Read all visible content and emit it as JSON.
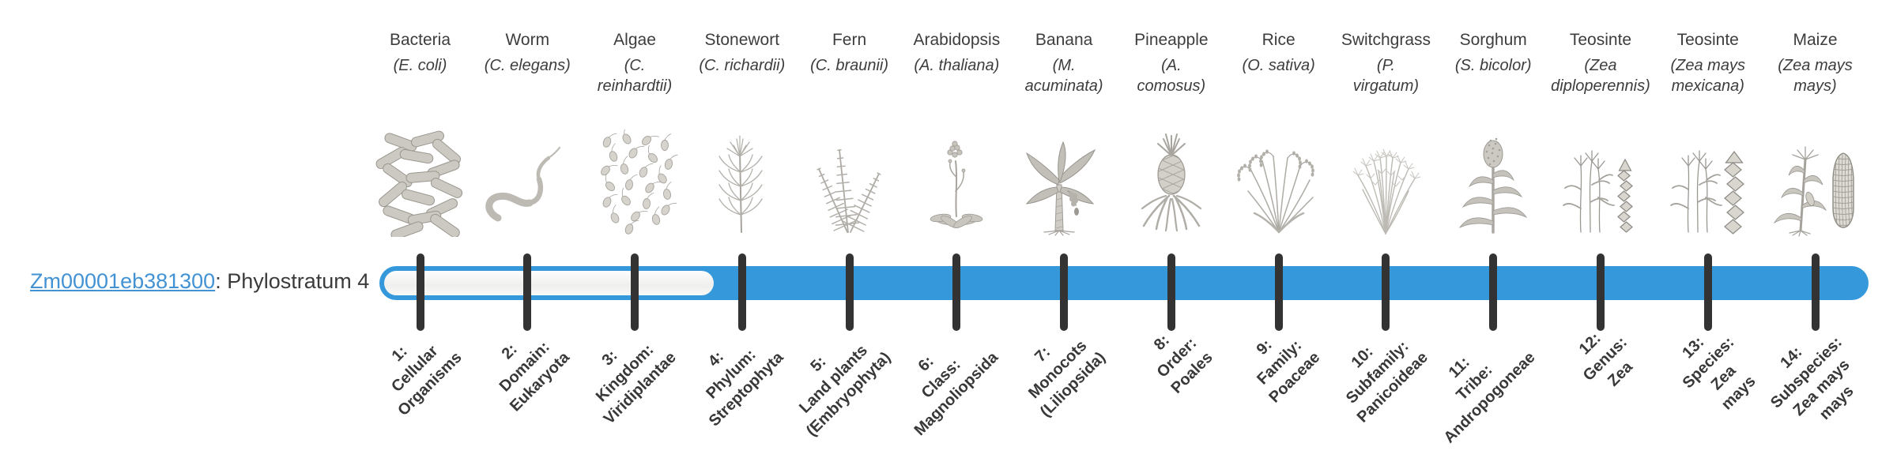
{
  "gene": {
    "id": "Zm00001eb381300",
    "label_suffix": ": Phylostratum 4",
    "phylostratum": 4,
    "link_color": "#4292d4",
    "text_color": "#3b3b3b"
  },
  "timeline": {
    "bar_color": "#3498db",
    "tick_color": "#333333",
    "strata_count": 14,
    "filled_from_stratum": 4
  },
  "organisms": [
    {
      "name": "Bacteria",
      "sci": "(E. coli)",
      "icon": "bacteria",
      "stratum_label": "1:\nCellular\nOrganisms"
    },
    {
      "name": "Worm",
      "sci": "(C. elegans)",
      "icon": "worm",
      "stratum_label": "2:\nDomain:\nEukaryota"
    },
    {
      "name": "Algae",
      "sci": "(C.\nreinhardtii)",
      "icon": "algae",
      "stratum_label": "3:\nKingdom:\nViridiplantae"
    },
    {
      "name": "Stonewort",
      "sci": "(C. richardii)",
      "icon": "stonewort",
      "stratum_label": "4:\nPhylum:\nStreptophyta"
    },
    {
      "name": "Fern",
      "sci": "(C. braunii)",
      "icon": "fern",
      "stratum_label": "5:\nLand plants\n(Embryophyta)"
    },
    {
      "name": "Arabidopsis",
      "sci": "(A. thaliana)",
      "icon": "arabidopsis",
      "stratum_label": "6:\nClass:\nMagnoliopsida"
    },
    {
      "name": "Banana",
      "sci": "(M.\nacuminata)",
      "icon": "banana",
      "stratum_label": "7:\nMonocots\n(Liliopsida)"
    },
    {
      "name": "Pineapple",
      "sci": "(A.\ncomosus)",
      "icon": "pineapple",
      "stratum_label": "8:\nOrder:\nPoales"
    },
    {
      "name": "Rice",
      "sci": "(O. sativa)",
      "icon": "rice",
      "stratum_label": "9:\nFamily:\nPoaceae"
    },
    {
      "name": "Switchgrass",
      "sci": "(P.\nvirgatum)",
      "icon": "switchgrass",
      "stratum_label": "10:\nSubfamily:\nPanicoideae"
    },
    {
      "name": "Sorghum",
      "sci": "(S. bicolor)",
      "icon": "sorghum",
      "stratum_label": "11:\nTribe:\nAndropogoneae"
    },
    {
      "name": "Teosinte",
      "sci": "(Zea\ndiploperennis)",
      "icon": "teosinte-diploperennis",
      "stratum_label": "12:\nGenus:\nZea"
    },
    {
      "name": "Teosinte",
      "sci": "(Zea mays\nmexicana)",
      "icon": "teosinte-mexicana",
      "stratum_label": "13:\nSpecies:\nZea\nmays"
    },
    {
      "name": "Maize",
      "sci": "(Zea mays\nmays)",
      "icon": "maize",
      "stratum_label": "14:\nSubspecies:\nZea mays\nmays"
    }
  ]
}
